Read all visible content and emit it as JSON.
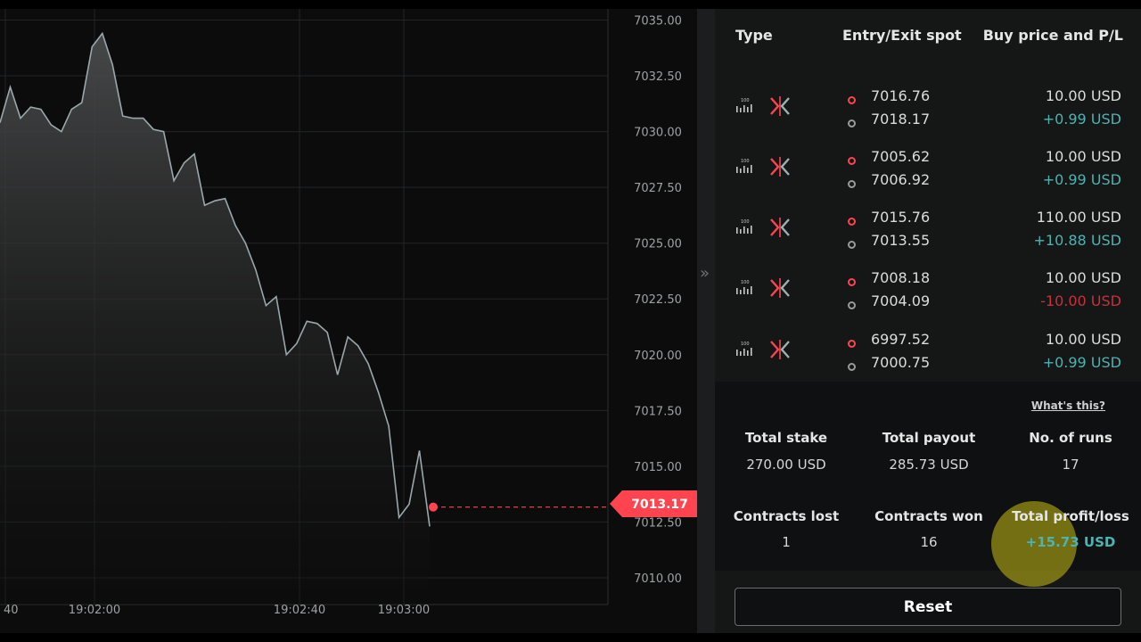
{
  "chart": {
    "current_price": "7013.17",
    "y_ticks": [
      "7035.00",
      "7032.50",
      "7030.00",
      "7027.50",
      "7025.00",
      "7022.50",
      "7020.00",
      "7017.50",
      "7015.00",
      "7012.50",
      "7010.00"
    ],
    "x_ticks": [
      "40",
      "19:02:00",
      "19:02:40",
      "19:03:00"
    ]
  },
  "chart_data": {
    "type": "area",
    "x": [
      0,
      1,
      2,
      3,
      4,
      5,
      6,
      7,
      8,
      9,
      10,
      11,
      12,
      13,
      14,
      15,
      16,
      17,
      18,
      19,
      20,
      21,
      22,
      23,
      24,
      25,
      26,
      27,
      28,
      29,
      30,
      31,
      32,
      33,
      34,
      35,
      36,
      37,
      38,
      39,
      40,
      41,
      42
    ],
    "values": [
      7030.4,
      7032.0,
      7030.6,
      7031.1,
      7031.0,
      7030.3,
      7030.0,
      7031.0,
      7031.3,
      7033.8,
      7034.4,
      7033.0,
      7030.7,
      7030.6,
      7030.6,
      7030.1,
      7030.0,
      7027.8,
      7028.6,
      7029.0,
      7026.7,
      7026.9,
      7027.0,
      7025.8,
      7025.0,
      7023.8,
      7022.2,
      7022.6,
      7020.0,
      7020.5,
      7021.5,
      7021.4,
      7021.0,
      7019.1,
      7020.8,
      7020.4,
      7019.6,
      7018.3,
      7016.8,
      7012.7,
      7013.3,
      7015.7,
      7012.3
    ],
    "ylim": [
      7008.8,
      7035.5
    ],
    "grid": true
  },
  "panel": {
    "headers": {
      "type": "Type",
      "entry_exit": "Entry/Exit spot",
      "buy_pl": "Buy price and P/L"
    },
    "contracts": [
      {
        "entry": "7016.76",
        "exit": "7018.17",
        "buy": "10.00 USD",
        "pl": "+0.99 USD",
        "pl_sign": "pos"
      },
      {
        "entry": "7005.62",
        "exit": "7006.92",
        "buy": "10.00 USD",
        "pl": "+0.99 USD",
        "pl_sign": "pos"
      },
      {
        "entry": "7015.76",
        "exit": "7013.55",
        "buy": "110.00 USD",
        "pl": "+10.88 USD",
        "pl_sign": "pos"
      },
      {
        "entry": "7008.18",
        "exit": "7004.09",
        "buy": "10.00 USD",
        "pl": "-10.00 USD",
        "pl_sign": "neg"
      },
      {
        "entry": "6997.52",
        "exit": "7000.75",
        "buy": "10.00 USD",
        "pl": "+0.99 USD",
        "pl_sign": "pos"
      }
    ],
    "type_icon_label": "100"
  },
  "summary": {
    "whats_this": "What's this?",
    "total_stake_label": "Total stake",
    "total_stake": "270.00 USD",
    "total_payout_label": "Total payout",
    "total_payout": "285.73 USD",
    "runs_label": "No. of runs",
    "runs": "17",
    "lost_label": "Contracts lost",
    "lost": "1",
    "won_label": "Contracts won",
    "won": "16",
    "pl_label": "Total profit/loss",
    "pl": "+15.73 USD"
  },
  "reset_label": "Reset",
  "colors": {
    "accent_red": "#ff444f",
    "profit": "#4bb4b3",
    "loss": "#cc2e3d"
  }
}
